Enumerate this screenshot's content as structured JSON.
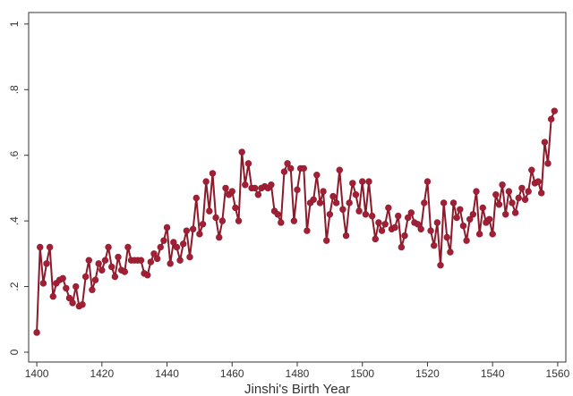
{
  "chart_data": {
    "type": "line",
    "x_label": "Jinshi's Birth Year",
    "color": "#8b1a2b",
    "marker_color": "#a31f35",
    "x": [
      1400,
      1401,
      1402,
      1403,
      1404,
      1405,
      1406,
      1407,
      1408,
      1409,
      1410,
      1411,
      1412,
      1413,
      1414,
      1415,
      1416,
      1417,
      1418,
      1419,
      1420,
      1421,
      1422,
      1423,
      1424,
      1425,
      1426,
      1427,
      1428,
      1429,
      1430,
      1431,
      1432,
      1433,
      1434,
      1435,
      1436,
      1437,
      1438,
      1439,
      1440,
      1441,
      1442,
      1443,
      1444,
      1445,
      1446,
      1447,
      1448,
      1449,
      1450,
      1451,
      1452,
      1453,
      1454,
      1455,
      1456,
      1457,
      1458,
      1459,
      1460,
      1461,
      1462,
      1463,
      1464,
      1465,
      1466,
      1467,
      1468,
      1469,
      1470,
      1471,
      1472,
      1473,
      1474,
      1475,
      1476,
      1477,
      1478,
      1479,
      1480,
      1481,
      1482,
      1483,
      1484,
      1485,
      1486,
      1487,
      1488,
      1489,
      1490,
      1491,
      1492,
      1493,
      1494,
      1495,
      1496,
      1497,
      1498,
      1499,
      1500,
      1501,
      1502,
      1503,
      1504,
      1505,
      1506,
      1507,
      1508,
      1509,
      1510,
      1511,
      1512,
      1513,
      1514,
      1515,
      1516,
      1517,
      1518,
      1519,
      1520,
      1521,
      1522,
      1523,
      1524,
      1525,
      1526,
      1527,
      1528,
      1529,
      1530,
      1531,
      1532,
      1533,
      1534,
      1535,
      1536,
      1537,
      1538,
      1539,
      1540,
      1541,
      1542,
      1543,
      1544,
      1545,
      1546,
      1547,
      1548,
      1549,
      1550,
      1551,
      1552,
      1553,
      1554,
      1555,
      1556,
      1557,
      1558,
      1559
    ],
    "values": [
      0.06,
      0.32,
      0.21,
      0.27,
      0.32,
      0.17,
      0.21,
      0.22,
      0.225,
      0.195,
      0.165,
      0.15,
      0.2,
      0.14,
      0.145,
      0.23,
      0.28,
      0.19,
      0.22,
      0.27,
      0.25,
      0.28,
      0.32,
      0.26,
      0.23,
      0.29,
      0.25,
      0.245,
      0.32,
      0.28,
      0.28,
      0.28,
      0.28,
      0.24,
      0.235,
      0.275,
      0.3,
      0.285,
      0.32,
      0.34,
      0.38,
      0.27,
      0.335,
      0.32,
      0.28,
      0.33,
      0.37,
      0.29,
      0.375,
      0.47,
      0.36,
      0.39,
      0.52,
      0.43,
      0.545,
      0.41,
      0.35,
      0.4,
      0.5,
      0.48,
      0.49,
      0.44,
      0.4,
      0.61,
      0.51,
      0.575,
      0.5,
      0.5,
      0.48,
      0.5,
      0.505,
      0.5,
      0.51,
      0.43,
      0.42,
      0.395,
      0.55,
      0.575,
      0.56,
      0.4,
      0.495,
      0.56,
      0.56,
      0.37,
      0.455,
      0.465,
      0.54,
      0.455,
      0.49,
      0.34,
      0.42,
      0.475,
      0.455,
      0.555,
      0.435,
      0.355,
      0.455,
      0.515,
      0.48,
      0.43,
      0.52,
      0.42,
      0.52,
      0.415,
      0.345,
      0.395,
      0.37,
      0.39,
      0.44,
      0.375,
      0.38,
      0.415,
      0.32,
      0.355,
      0.41,
      0.425,
      0.395,
      0.39,
      0.375,
      0.455,
      0.52,
      0.37,
      0.325,
      0.395,
      0.265,
      0.455,
      0.35,
      0.305,
      0.455,
      0.41,
      0.435,
      0.385,
      0.34,
      0.405,
      0.42,
      0.49,
      0.36,
      0.44,
      0.395,
      0.405,
      0.36,
      0.48,
      0.45,
      0.51,
      0.42,
      0.49,
      0.455,
      0.425,
      0.47,
      0.5,
      0.465,
      0.49,
      0.555,
      0.515,
      0.52,
      0.485,
      0.64,
      0.575,
      0.71,
      0.735
    ],
    "xlim": [
      1397.5,
      1562.5
    ],
    "xticks": [
      1400,
      1420,
      1440,
      1460,
      1480,
      1500,
      1520,
      1540,
      1560
    ],
    "ylim": [
      -0.03,
      1.035
    ],
    "yticks": [
      0,
      {
        "value": 0.2,
        "label": ".2"
      },
      {
        "value": 0.4,
        "label": ".4"
      },
      {
        "value": 0.6,
        "label": ".6"
      },
      {
        "value": 0.8,
        "label": ".8"
      },
      1
    ]
  }
}
